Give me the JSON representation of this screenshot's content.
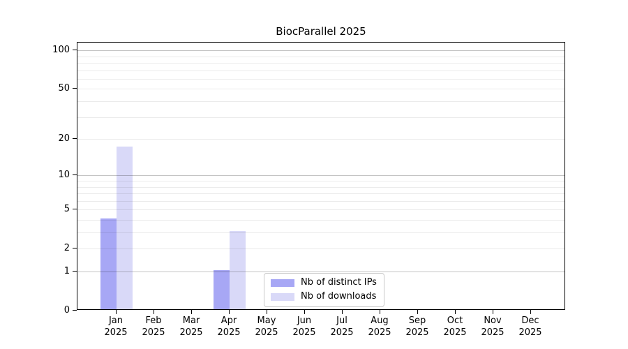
{
  "title": "BiocParallel 2025",
  "chart_data": {
    "type": "bar",
    "title": "BiocParallel 2025",
    "categories": [
      "Jan",
      "Feb",
      "Mar",
      "Apr",
      "May",
      "Jun",
      "Jul",
      "Aug",
      "Sep",
      "Oct",
      "Nov",
      "Dec"
    ],
    "year": "2025",
    "series": [
      {
        "name": "Nb of distinct IPs",
        "color": "#a7a7f5",
        "values": [
          4,
          0,
          0,
          1,
          0,
          0,
          0,
          0,
          0,
          0,
          0,
          0
        ]
      },
      {
        "name": "Nb of downloads",
        "color": "#d9d9f8",
        "values": [
          17,
          0,
          0,
          3,
          0,
          0,
          0,
          0,
          0,
          0,
          0,
          0
        ]
      }
    ],
    "y_axis": {
      "scale": "log1p",
      "top_value": 115,
      "tick_labels": [
        0,
        1,
        2,
        5,
        10,
        20,
        50,
        100
      ],
      "major_gridlines": [
        1,
        10,
        100
      ],
      "minor_gridlines": [
        2,
        3,
        4,
        5,
        6,
        7,
        8,
        9,
        20,
        30,
        40,
        50,
        60,
        70,
        80,
        90
      ]
    },
    "x_axis": {
      "label_line2": "2025"
    },
    "legend_position": "bottom-center",
    "grid": true,
    "colors": {
      "major_grid": "#c3c3c3",
      "minor_grid": "#eaeaea",
      "axis": "#000000",
      "background": "#ffffff"
    }
  }
}
